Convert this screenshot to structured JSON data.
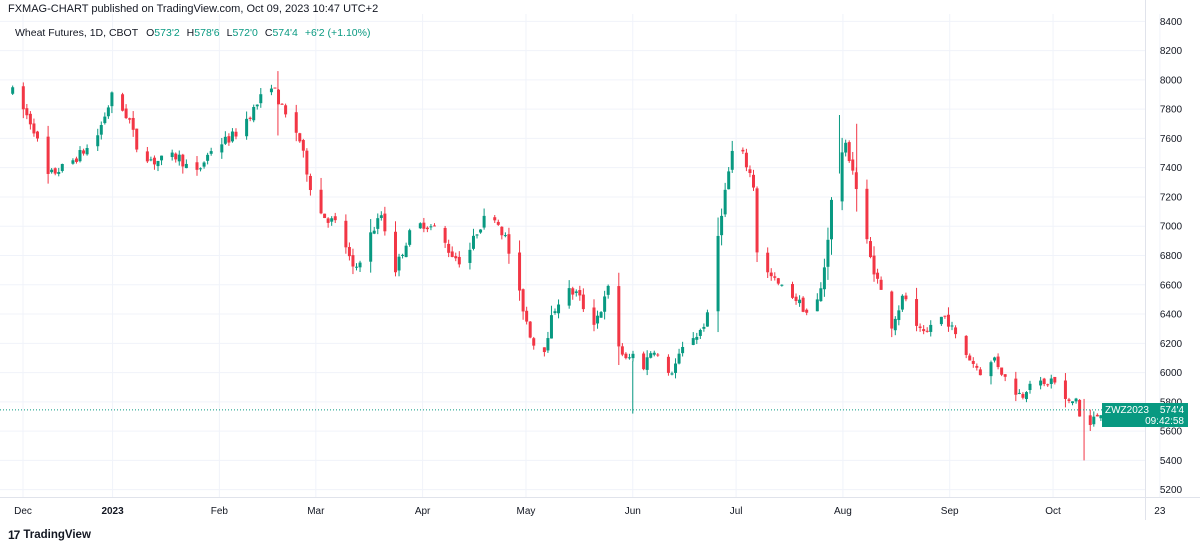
{
  "header": {
    "publish_line": "FXMAG-CHART published on TradingView.com, Oct 09, 2023 10:47 UTC+2",
    "symbol_line": "Wheat Futures, 1D, CBOT",
    "ohlc": {
      "open_label": "O",
      "open": "573'2",
      "high_label": "H",
      "high": "578'6",
      "low_label": "L",
      "low": "572'0",
      "close_label": "C",
      "close": "574'4",
      "change": "+6'2 (+1.10%)"
    }
  },
  "price_tag": {
    "symbol": "ZWZ2023",
    "price": "574'4",
    "countdown": "09:42:58"
  },
  "footer": {
    "logo_text": "TradingView",
    "logo_mark": "17"
  },
  "colors": {
    "up": "#089981",
    "down": "#f23645",
    "grid": "#f0f3fa",
    "axis_text": "#131722"
  },
  "chart_data": {
    "type": "candlestick",
    "title": "Wheat Futures, 1D, CBOT",
    "y_unit": "price (cents, displayed as 'price'eighths)",
    "ylim": [
      5150,
      8450
    ],
    "y_ticks": [
      "8400",
      "8200",
      "8000",
      "7800",
      "7600",
      "7400",
      "7200",
      "7000",
      "6800",
      "6600",
      "6400",
      "6200",
      "6000",
      "5800",
      "5600",
      "5400",
      "5200"
    ],
    "x_ticks": [
      {
        "label": "Dec",
        "day": 0
      },
      {
        "label": "2023",
        "day": 26,
        "bold": true
      },
      {
        "label": "Feb",
        "day": 57
      },
      {
        "label": "Mar",
        "day": 85
      },
      {
        "label": "Apr",
        "day": 116
      },
      {
        "label": "May",
        "day": 146
      },
      {
        "label": "Jun",
        "day": 177
      },
      {
        "label": "Jul",
        "day": 207
      },
      {
        "label": "Aug",
        "day": 238
      },
      {
        "label": "Sep",
        "day": 269
      },
      {
        "label": "Oct",
        "day": 299
      },
      {
        "label": "23",
        "day": 330
      }
    ],
    "close_path": [
      [
        -3,
        7920
      ],
      [
        3,
        7680
      ],
      [
        7,
        7340
      ],
      [
        13,
        7420
      ],
      [
        18,
        7520
      ],
      [
        21,
        7580
      ],
      [
        26,
        7900
      ],
      [
        31,
        7720
      ],
      [
        33,
        7540
      ],
      [
        38,
        7440
      ],
      [
        45,
        7480
      ],
      [
        50,
        7340
      ],
      [
        55,
        7540
      ],
      [
        60,
        7600
      ],
      [
        62,
        7640
      ],
      [
        67,
        7800
      ],
      [
        72,
        7980
      ],
      [
        76,
        7760
      ],
      [
        80,
        7620
      ],
      [
        85,
        7120
      ],
      [
        88,
        7060
      ],
      [
        92,
        7000
      ],
      [
        96,
        6680
      ],
      [
        100,
        6900
      ],
      [
        104,
        7080
      ],
      [
        108,
        6700
      ],
      [
        112,
        6940
      ],
      [
        116,
        7020
      ],
      [
        120,
        6980
      ],
      [
        124,
        6820
      ],
      [
        128,
        6740
      ],
      [
        132,
        6980
      ],
      [
        136,
        7120
      ],
      [
        140,
        6920
      ],
      [
        144,
        6540
      ],
      [
        148,
        6200
      ],
      [
        151,
        6140
      ],
      [
        154,
        6420
      ],
      [
        157,
        6560
      ],
      [
        161,
        6540
      ],
      [
        165,
        6320
      ],
      [
        168,
        6440
      ],
      [
        170,
        6580
      ],
      [
        173,
        6180
      ],
      [
        175,
        6080
      ],
      [
        178,
        6140
      ],
      [
        180,
        6040
      ],
      [
        183,
        6180
      ],
      [
        187,
        5960
      ],
      [
        190,
        6080
      ],
      [
        193,
        6240
      ],
      [
        196,
        6260
      ],
      [
        200,
        6440
      ],
      [
        202,
        7000
      ],
      [
        204,
        7260
      ],
      [
        206,
        7520
      ],
      [
        209,
        7480
      ],
      [
        212,
        7300
      ],
      [
        213,
        6840
      ],
      [
        216,
        6680
      ],
      [
        220,
        6580
      ],
      [
        223,
        6540
      ],
      [
        226,
        6460
      ],
      [
        229,
        6360
      ],
      [
        232,
        6600
      ],
      [
        234,
        7000
      ],
      [
        236,
        7480
      ],
      [
        239,
        7540
      ],
      [
        241,
        7380
      ],
      [
        243,
        7100
      ],
      [
        246,
        6780
      ],
      [
        249,
        6560
      ],
      [
        252,
        6320
      ],
      [
        256,
        6540
      ],
      [
        258,
        6320
      ],
      [
        262,
        6240
      ],
      [
        264,
        6360
      ],
      [
        268,
        6380
      ],
      [
        272,
        6180
      ],
      [
        276,
        6060
      ],
      [
        279,
        5980
      ],
      [
        282,
        6100
      ],
      [
        286,
        5920
      ],
      [
        290,
        5840
      ],
      [
        293,
        5980
      ],
      [
        296,
        5900
      ],
      [
        299,
        5960
      ],
      [
        301,
        5840
      ],
      [
        304,
        5780
      ],
      [
        306,
        5840
      ],
      [
        308,
        5440
      ],
      [
        310,
        5660
      ],
      [
        313,
        5740
      ],
      [
        315,
        5700
      ],
      [
        317,
        5745
      ]
    ],
    "n_candles": 222,
    "last_candle": {
      "open": 5732,
      "high": 5787,
      "low": 5720,
      "close": 5745
    },
    "recent_extremes": [
      {
        "high": 8060,
        "low": 7620
      },
      {
        "high": 7760,
        "low": 7360
      },
      {
        "high": 7700,
        "low": 7100
      },
      {
        "high": 6080,
        "low": 5720
      },
      {
        "high": 5820,
        "low": 5400
      }
    ],
    "current_price": 5745,
    "current_price_label": "574'4"
  }
}
